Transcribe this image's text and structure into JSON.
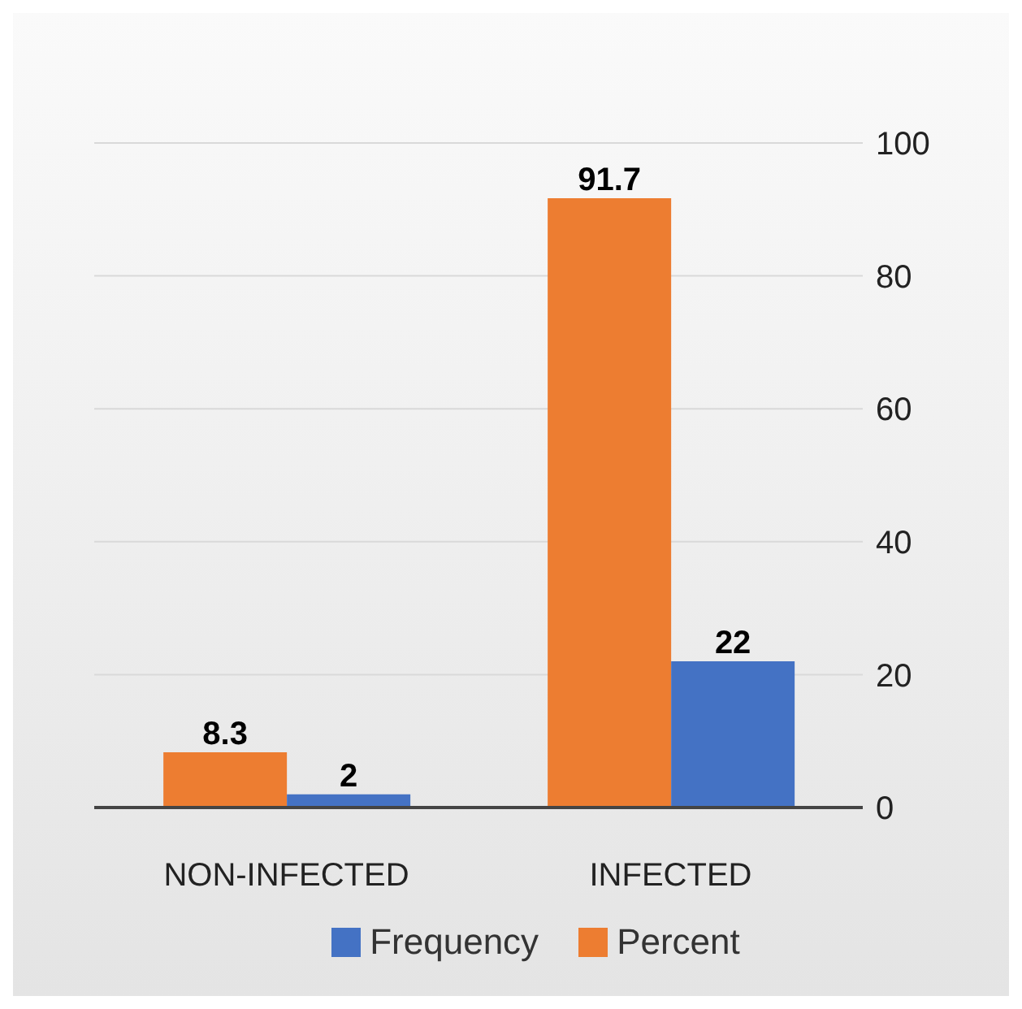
{
  "chart_data": {
    "type": "bar",
    "categories": [
      "NON-INFECTED",
      "INFECTED"
    ],
    "series": [
      {
        "name": "Percent",
        "color": "#ed7d31",
        "values": [
          8.3,
          91.7
        ]
      },
      {
        "name": "Frequency",
        "color": "#4472c4",
        "values": [
          2,
          22
        ]
      }
    ],
    "ylim": [
      0,
      100
    ],
    "yticks": [
      0,
      20,
      40,
      60,
      80,
      100
    ],
    "grid": "y",
    "legend": "bottom",
    "data_labels": true
  }
}
